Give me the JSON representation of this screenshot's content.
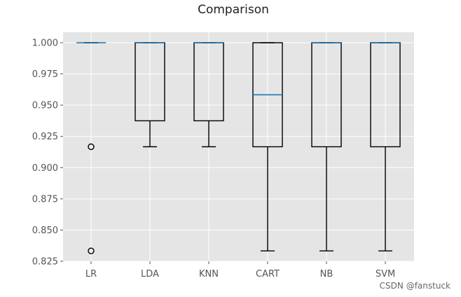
{
  "chart_data": {
    "type": "box",
    "title": "Comparison",
    "categories": [
      "LR",
      "LDA",
      "KNN",
      "CART",
      "NB",
      "SVM"
    ],
    "ylim": [
      0.825,
      1.0
    ],
    "yticks": [
      "1.000",
      "0.975",
      "0.950",
      "0.925",
      "0.900",
      "0.875",
      "0.850",
      "0.825"
    ],
    "boxes": [
      {
        "name": "LR",
        "whisker_low": 1.0,
        "q1": 1.0,
        "median": 1.0,
        "q3": 1.0,
        "whisker_high": 1.0,
        "outliers": [
          0.9167,
          0.8333
        ]
      },
      {
        "name": "LDA",
        "whisker_low": 0.9167,
        "q1": 0.9375,
        "median": 1.0,
        "q3": 1.0,
        "whisker_high": 1.0,
        "outliers": []
      },
      {
        "name": "KNN",
        "whisker_low": 0.9167,
        "q1": 0.9375,
        "median": 1.0,
        "q3": 1.0,
        "whisker_high": 1.0,
        "outliers": []
      },
      {
        "name": "CART",
        "whisker_low": 0.8333,
        "q1": 0.9167,
        "median": 0.9583,
        "q3": 1.0,
        "whisker_high": 1.0,
        "outliers": []
      },
      {
        "name": "NB",
        "whisker_low": 0.8333,
        "q1": 0.9167,
        "median": 1.0,
        "q3": 1.0,
        "whisker_high": 1.0,
        "outliers": []
      },
      {
        "name": "SVM",
        "whisker_low": 0.8333,
        "q1": 0.9167,
        "median": 1.0,
        "q3": 1.0,
        "whisker_high": 1.0,
        "outliers": []
      }
    ],
    "grid": true,
    "colors": {
      "background": "#e5e5e5",
      "grid": "#ffffff",
      "box": "#000000",
      "median": "#1f77b4"
    }
  },
  "watermark": "CSDN @fanstuck"
}
